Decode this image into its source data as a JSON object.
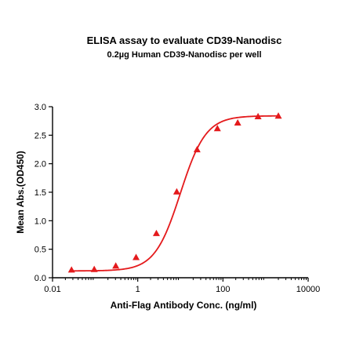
{
  "chart_data": {
    "type": "scatter",
    "title": "ELISA assay to evaluate CD39-Nanodisc",
    "subtitle": "0.2µg Human CD39-Nanodisc per well",
    "xlabel": "Anti-Flag Antibody Conc. (ng/ml)",
    "ylabel": "Mean Abs.(OD450)",
    "x_scale": "log",
    "xlim": [
      0.01,
      10000
    ],
    "ylim": [
      0,
      3.0
    ],
    "x_ticks": [
      0.01,
      1,
      100,
      10000
    ],
    "x_tick_labels": [
      "0.01",
      "1",
      "100",
      "10000"
    ],
    "y_ticks": [
      0,
      0.5,
      1.0,
      1.5,
      2.0,
      2.5,
      3.0
    ],
    "y_tick_labels": [
      "0.0",
      "0.5",
      "1.0",
      "1.5",
      "2.0",
      "2.5",
      "3.0"
    ],
    "grid": false,
    "series": [
      {
        "marker": "triangle",
        "color": "#e41a1c",
        "x": [
          0.0279,
          0.0953,
          0.305,
          0.914,
          2.74,
          8.23,
          24.7,
          74.1,
          222,
          667,
          2000
        ],
        "y": [
          0.14,
          0.15,
          0.21,
          0.36,
          0.78,
          1.51,
          2.25,
          2.62,
          2.72,
          2.83,
          2.84
        ]
      }
    ],
    "fit_curve": {
      "model": "4PL",
      "bottom": 0.12,
      "top": 2.84,
      "ec50": 10.0,
      "hill": 1.45,
      "color": "#e41a1c"
    }
  }
}
